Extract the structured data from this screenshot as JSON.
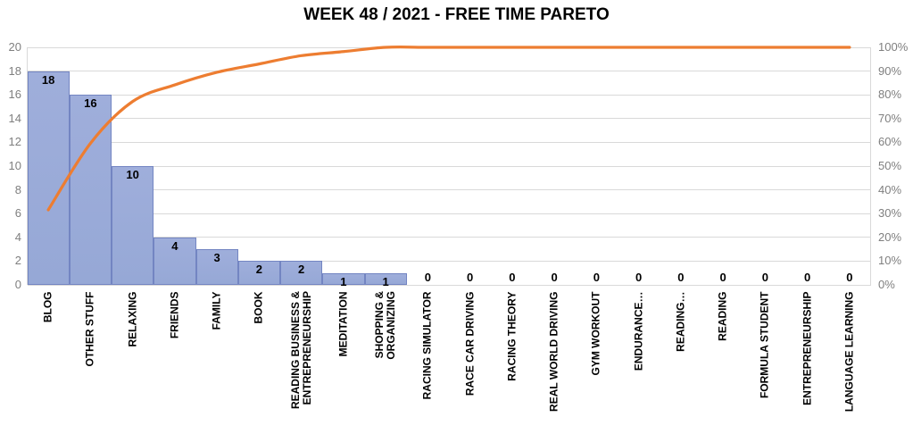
{
  "chart_data": {
    "type": "pareto (bar + cumulative line)",
    "title": "WEEK 48 / 2021 - FREE TIME PARETO",
    "categories": [
      "BLOG",
      "OTHER STUFF",
      "RELAXING",
      "FRIENDS",
      "FAMILY",
      "BOOK",
      "READING BUSINESS &\nENTREPRENEURSHIP",
      "MEDITATION",
      "SHOPPING &\nORGANIZING",
      "RACING SIMULATOR",
      "RACE CAR DRIVING",
      "RACING THEORY",
      "REAL WORLD DRIVING",
      "GYM WORKOUT",
      "ENDURANCE…",
      "READING…",
      "READING",
      "FORMULA STUDENT",
      "ENTREPRENEURSHIP",
      "LANGUAGE LEARNING"
    ],
    "values": [
      18,
      16,
      10,
      4,
      3,
      2,
      2,
      1,
      1,
      0,
      0,
      0,
      0,
      0,
      0,
      0,
      0,
      0,
      0,
      0
    ],
    "bar_data_labels": [
      "18",
      "16",
      "10",
      "4",
      "3",
      "2",
      "2",
      "1",
      "1",
      "0",
      "0",
      "0",
      "0",
      "0",
      "0",
      "0",
      "0",
      "0",
      "0",
      "0"
    ],
    "cumulative_pct": [
      31.6,
      59.6,
      77.2,
      84.2,
      89.5,
      93.0,
      96.5,
      98.2,
      100,
      100,
      100,
      100,
      100,
      100,
      100,
      100,
      100,
      100,
      100,
      100
    ],
    "left_axis": {
      "min": 0,
      "max": 20,
      "step": 2,
      "tick_labels": [
        "0",
        "2",
        "4",
        "6",
        "8",
        "10",
        "12",
        "14",
        "16",
        "18",
        "20"
      ]
    },
    "right_axis": {
      "min": 0,
      "max": 100,
      "step": 10,
      "tick_labels": [
        "0%",
        "10%",
        "20%",
        "30%",
        "40%",
        "50%",
        "60%",
        "70%",
        "80%",
        "90%",
        "100%"
      ]
    },
    "legend": "none",
    "grid": true,
    "colors": {
      "bar_fill_top": "#9FAEDB",
      "bar_fill_bottom": "#96A8D6",
      "bar_border": "#7385C2",
      "line": "#ED7D31",
      "grid": "#D9D9D9",
      "tick_label": "#7F7F7F",
      "value_label": "#000000",
      "title": "#000000"
    }
  }
}
